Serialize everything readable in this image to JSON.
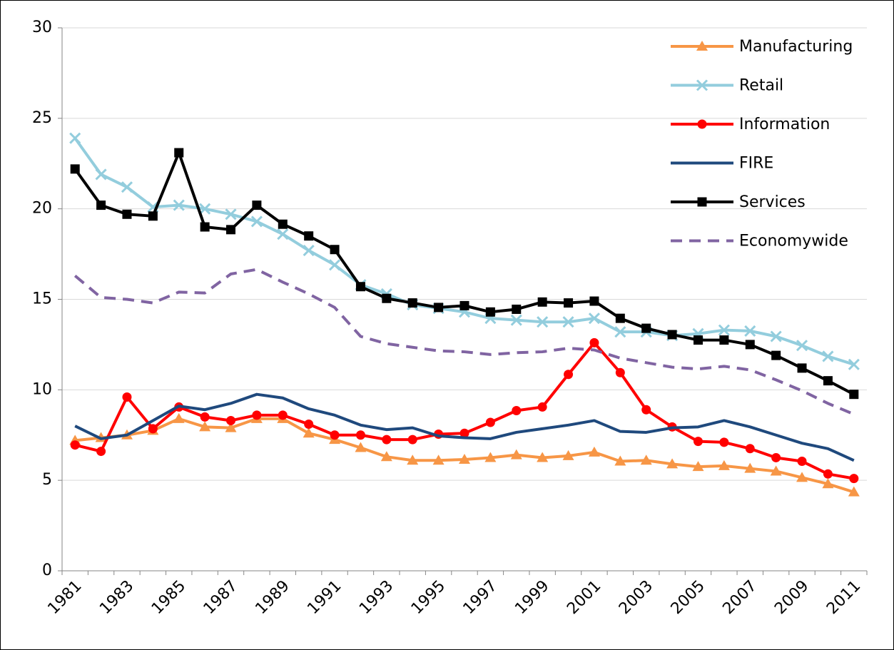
{
  "chart_data": {
    "type": "line",
    "categories": [
      "1981",
      null,
      "1983",
      null,
      "1985",
      null,
      "1987",
      null,
      "1989",
      null,
      "1991",
      null,
      "1993",
      null,
      "1995",
      null,
      "1997",
      null,
      "1999",
      null,
      "2001",
      null,
      "2003",
      null,
      "2005",
      null,
      "2007",
      null,
      "2009",
      null,
      "2011"
    ],
    "ylim": [
      0,
      30
    ],
    "yticks": [
      0,
      5,
      10,
      15,
      20,
      25,
      30
    ],
    "grid": true,
    "legend": "top-right",
    "series": [
      {
        "name": "Manufacturing",
        "color": "#f79646",
        "marker": "triangle",
        "values": [
          7.2,
          7.35,
          7.5,
          7.75,
          8.4,
          7.95,
          7.9,
          8.4,
          8.4,
          7.6,
          7.25,
          6.8,
          6.3,
          6.1,
          6.1,
          6.15,
          6.25,
          6.4,
          6.25,
          6.35,
          6.55,
          6.05,
          6.1,
          5.9,
          5.75,
          5.8,
          5.65,
          5.5,
          5.15,
          4.8,
          4.35
        ]
      },
      {
        "name": "Retail",
        "color": "#93cddd",
        "marker": "x",
        "values": [
          23.9,
          21.9,
          21.2,
          20.1,
          20.2,
          20.0,
          19.7,
          19.3,
          18.6,
          17.7,
          16.9,
          15.8,
          15.3,
          14.7,
          14.5,
          14.3,
          13.95,
          13.85,
          13.75,
          13.75,
          13.95,
          13.2,
          13.2,
          13.0,
          13.1,
          13.3,
          13.25,
          12.95,
          12.45,
          11.85,
          11.4
        ]
      },
      {
        "name": "Information",
        "color": "#ff0000",
        "marker": "circle",
        "values": [
          6.95,
          6.6,
          9.6,
          7.85,
          9.05,
          8.5,
          8.3,
          8.6,
          8.6,
          8.1,
          7.5,
          7.5,
          7.25,
          7.25,
          7.55,
          7.6,
          8.2,
          8.85,
          9.05,
          10.85,
          12.6,
          10.95,
          8.9,
          7.95,
          7.15,
          7.1,
          6.75,
          6.25,
          6.05,
          5.35,
          5.1
        ]
      },
      {
        "name": "FIRE",
        "color": "#1f497d",
        "marker": "none",
        "values": [
          8.0,
          7.3,
          7.5,
          8.3,
          9.1,
          8.9,
          9.25,
          9.75,
          9.55,
          8.95,
          8.6,
          8.05,
          7.8,
          7.9,
          7.45,
          7.35,
          7.3,
          7.65,
          7.85,
          8.05,
          8.3,
          7.7,
          7.65,
          7.9,
          7.95,
          8.3,
          7.95,
          7.5,
          7.05,
          6.75,
          6.1
        ]
      },
      {
        "name": "Services",
        "color": "#000000",
        "marker": "square",
        "values": [
          22.2,
          20.2,
          19.7,
          19.6,
          23.1,
          19.0,
          18.85,
          20.2,
          19.15,
          18.5,
          17.75,
          15.7,
          15.05,
          14.8,
          14.55,
          14.65,
          14.3,
          14.45,
          14.85,
          14.8,
          14.9,
          13.95,
          13.4,
          13.05,
          12.75,
          12.75,
          12.5,
          11.9,
          11.2,
          10.5,
          9.75
        ]
      },
      {
        "name": "Economywide",
        "color": "#8064a2",
        "marker": "none",
        "dash": true,
        "values": [
          16.3,
          15.1,
          15.0,
          14.8,
          15.4,
          15.35,
          16.4,
          16.65,
          15.95,
          15.3,
          14.55,
          12.95,
          12.55,
          12.35,
          12.15,
          12.1,
          11.95,
          12.05,
          12.1,
          12.3,
          12.2,
          11.75,
          11.5,
          11.25,
          11.15,
          11.3,
          11.1,
          10.55,
          9.95,
          9.25,
          8.65
        ]
      }
    ]
  }
}
